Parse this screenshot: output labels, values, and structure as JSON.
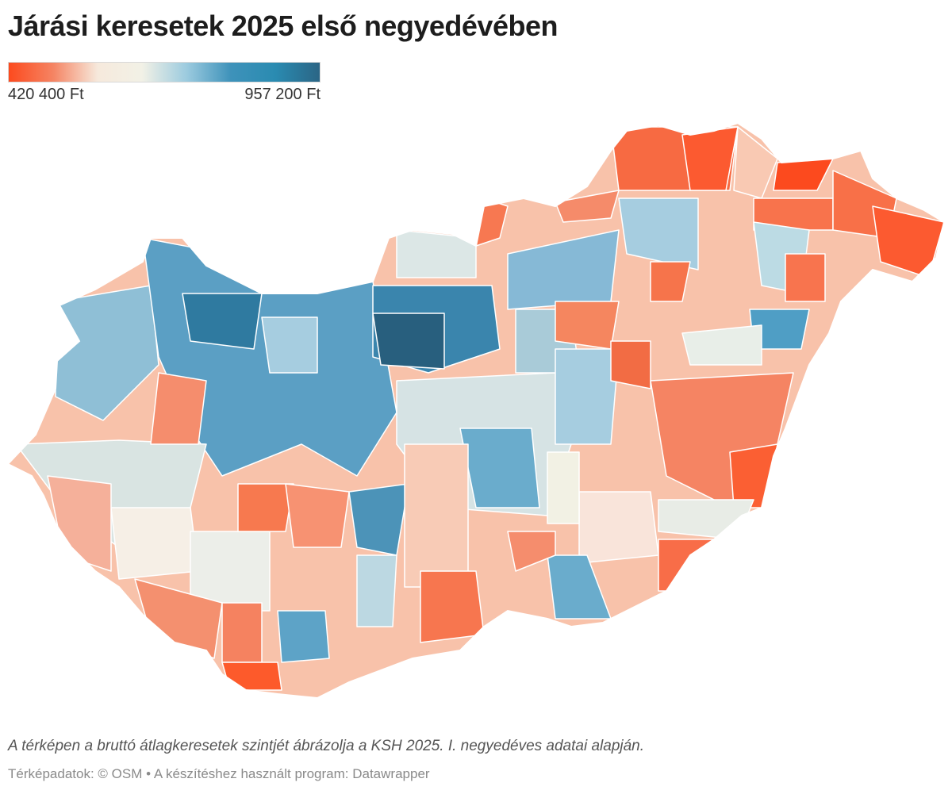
{
  "title": "Járási keresetek 2025 első negyedévében",
  "legend": {
    "min_label": "420 400 Ft",
    "max_label": "957 200 Ft",
    "min_value": 420400,
    "max_value": 957200,
    "colors": [
      "#fc4a1e",
      "#f58463",
      "#f6e9dc",
      "#f2f1e6",
      "#9ccbdf",
      "#3e92ba",
      "#2a8bb1",
      "#2b6585"
    ]
  },
  "footer": {
    "note": "A térképen a bruttó átlagkeresetek szintjét ábrázolja a KSH 2025. I. negyedéves adatai alapján.",
    "source": "Térképadatok: © OSM  • A készítéshez használt program: Datawrapper"
  },
  "map": {
    "region_name": "Magyarország járásai",
    "base_color": "#f8c2aa",
    "border_color": "#ffffff"
  }
}
